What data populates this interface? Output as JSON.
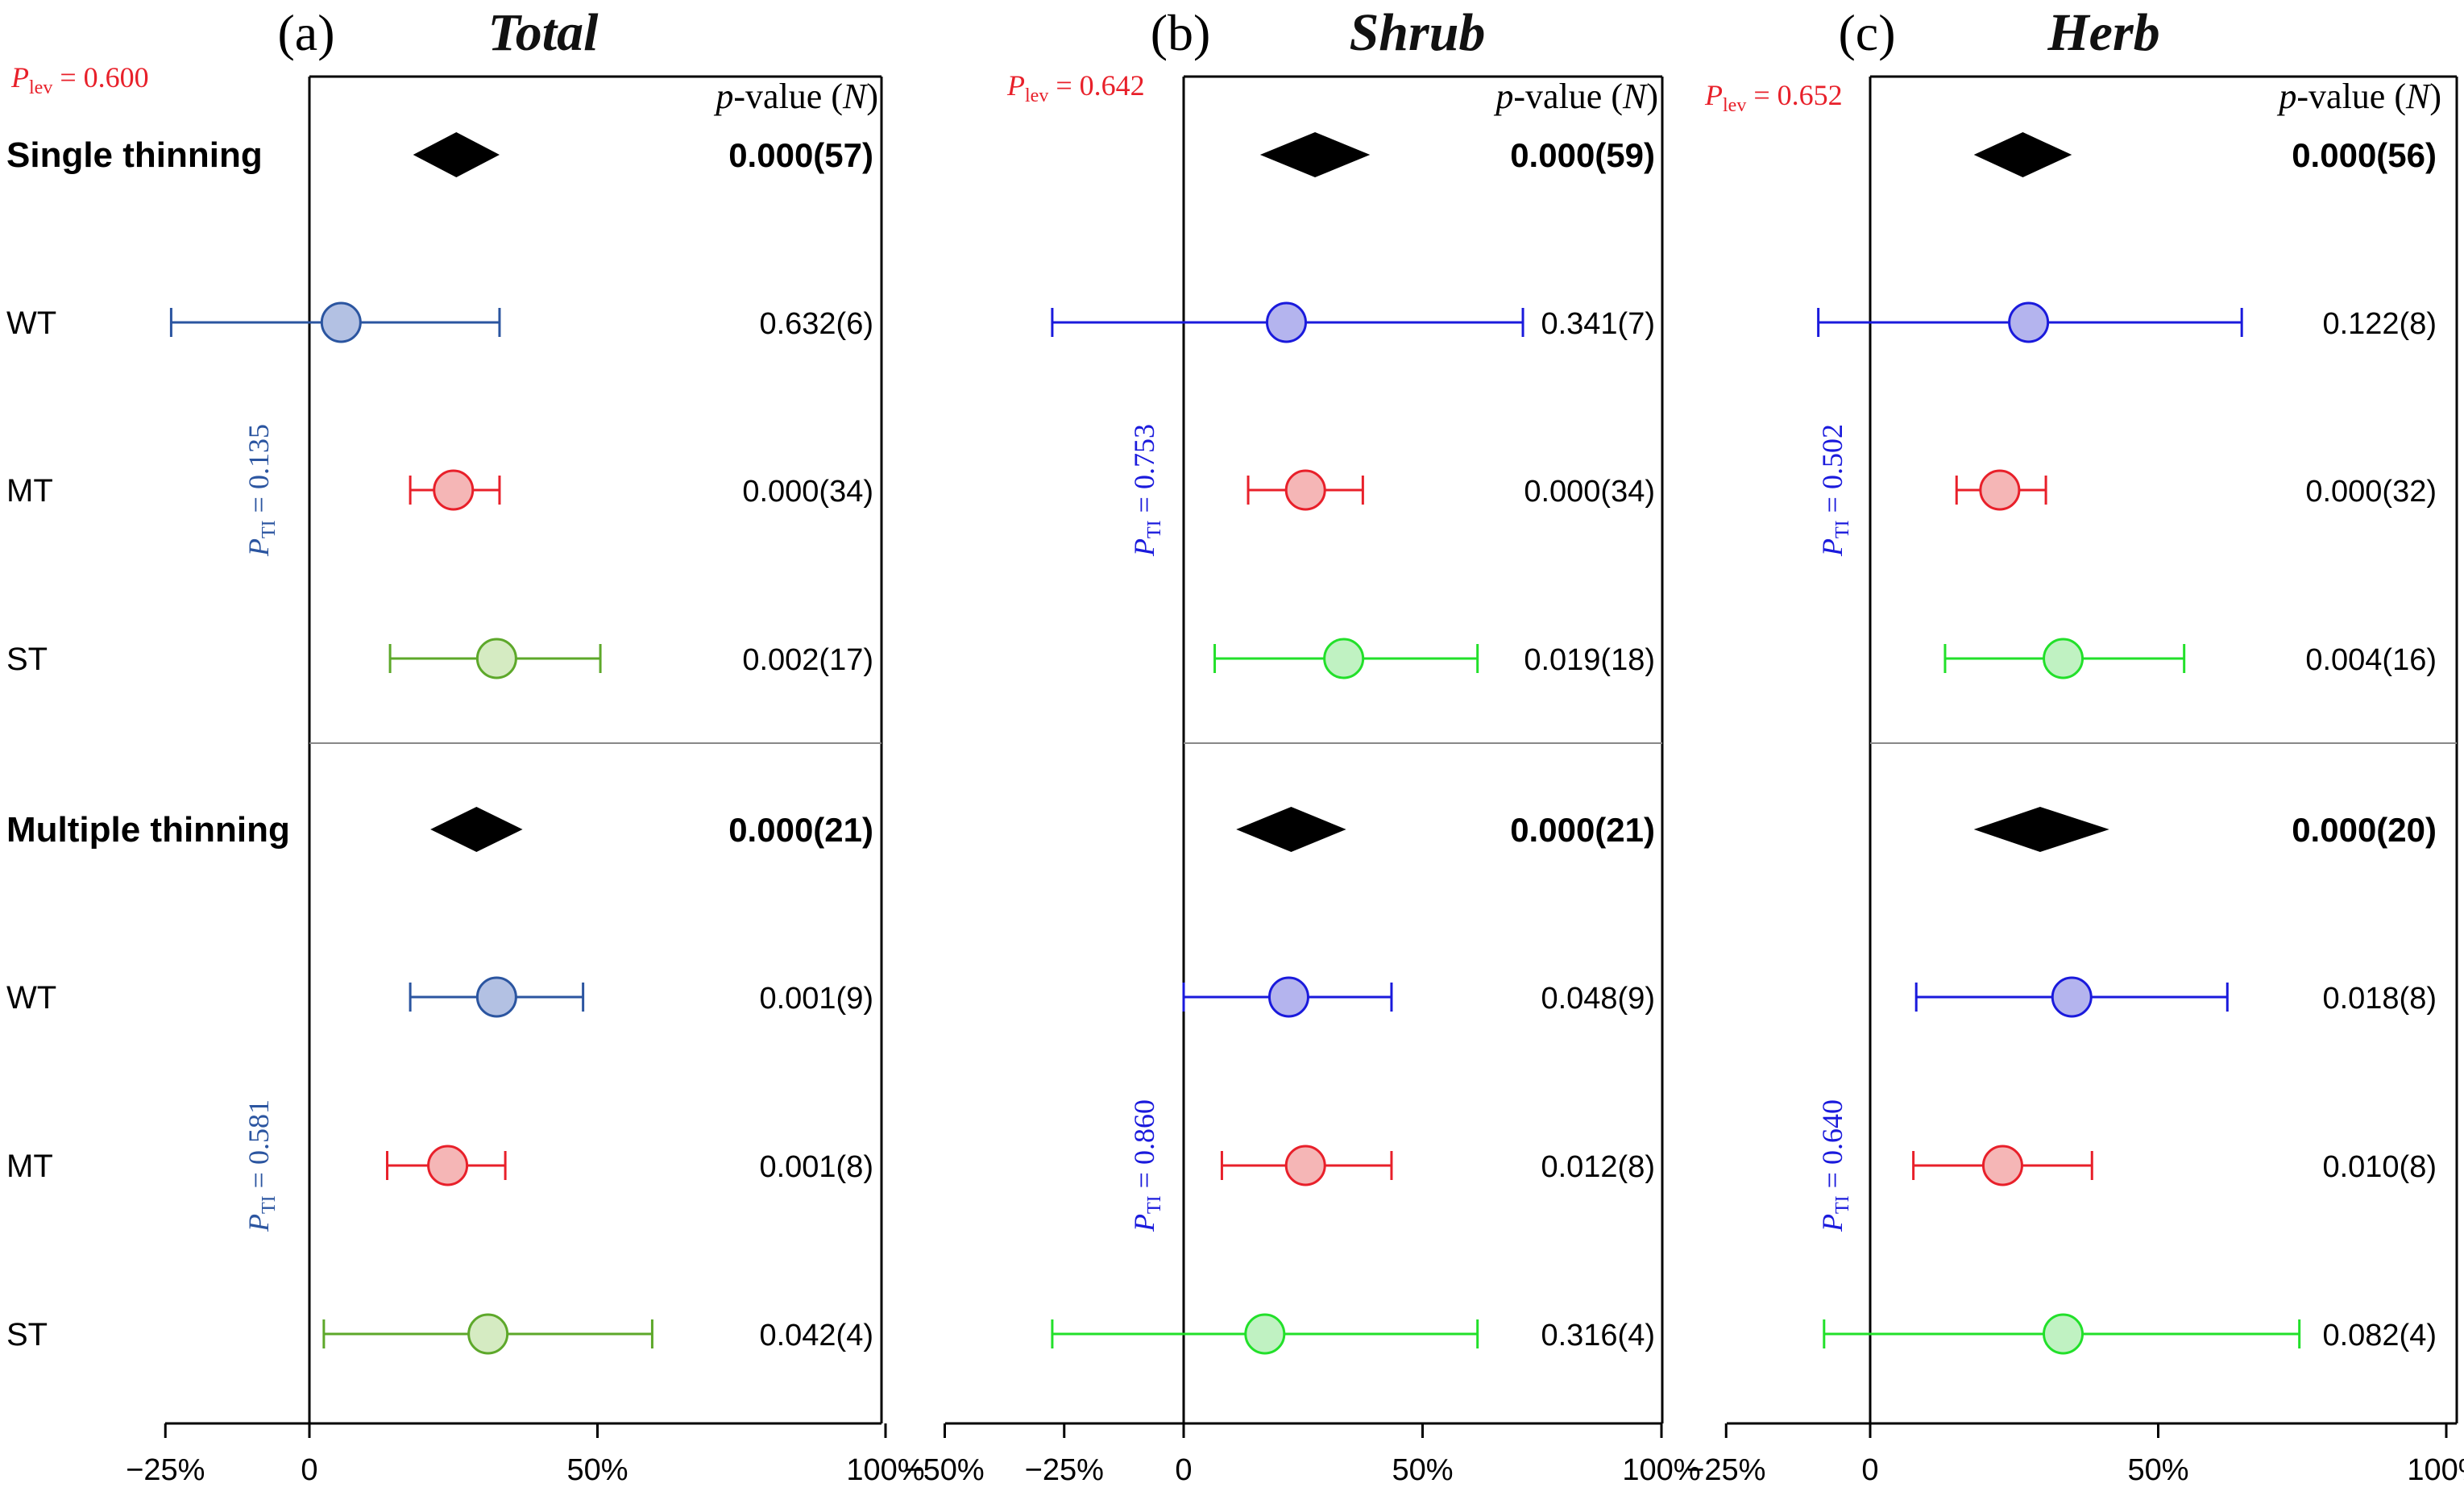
{
  "chart_data": [
    {
      "type": "forest",
      "panel_label": "(a)",
      "title": "Total",
      "p_lev": "0.600",
      "xlim": [
        -25,
        100
      ],
      "xticks": [
        -25,
        0,
        50,
        100
      ],
      "xtick_labels": [
        "−25%",
        "0",
        "50%",
        "100%"
      ],
      "column_header": [
        "p",
        "-value (",
        "N",
        ")"
      ],
      "groups": [
        {
          "name": "Single thinning",
          "pooled": {
            "mean": 25.5,
            "lower": 18,
            "upper": 33,
            "p_n": "0.000(57)"
          },
          "p_ti": "0.135",
          "rows": [
            {
              "label": "WT",
              "mean": 5.5,
              "lower": -24,
              "upper": 33,
              "p_n": "0.632(6)",
              "color": "#2b55a0",
              "fill": "#b3c1e3"
            },
            {
              "label": "MT",
              "mean": 25,
              "lower": 17.5,
              "upper": 33,
              "p_n": "0.000(34)",
              "color": "#e8202a",
              "fill": "#f5b6b6"
            },
            {
              "label": "ST",
              "mean": 32.5,
              "lower": 14,
              "upper": 50.5,
              "p_n": "0.002(17)",
              "color": "#5da82a",
              "fill": "#d5ebc2"
            }
          ]
        },
        {
          "name": "Multiple thinning",
          "pooled": {
            "mean": 29,
            "lower": 21,
            "upper": 37,
            "p_n": "0.000(21)"
          },
          "p_ti": "0.581",
          "rows": [
            {
              "label": "WT",
              "mean": 32.5,
              "lower": 17.5,
              "upper": 47.5,
              "p_n": "0.001(9)",
              "color": "#2b55a0",
              "fill": "#b3c1e3"
            },
            {
              "label": "MT",
              "mean": 24,
              "lower": 13.5,
              "upper": 34,
              "p_n": "0.001(8)",
              "color": "#e8202a",
              "fill": "#f5b6b6"
            },
            {
              "label": "ST",
              "mean": 31,
              "lower": 2.5,
              "upper": 59.5,
              "p_n": "0.042(4)",
              "color": "#5da82a",
              "fill": "#d5ebc2"
            }
          ]
        }
      ]
    },
    {
      "type": "forest",
      "panel_label": "(b)",
      "title": "Shrub",
      "p_lev": "0.642",
      "xlim": [
        -50,
        100
      ],
      "xticks": [
        -50,
        -25,
        0,
        50,
        100
      ],
      "xtick_labels": [
        "−50%",
        "−25%",
        "0",
        "50%",
        "100%"
      ],
      "column_header": [
        "p",
        "-value (",
        "N",
        ")"
      ],
      "groups": [
        {
          "name": "Single thinning",
          "pooled": {
            "mean": 27.5,
            "lower": 16,
            "upper": 39,
            "p_n": "0.000(59)"
          },
          "p_ti": "0.753",
          "rows": [
            {
              "label": "WT",
              "mean": 21.5,
              "lower": -27.5,
              "upper": 71,
              "p_n": "0.341(7)",
              "color": "#1a1adc",
              "fill": "#b4b4ee"
            },
            {
              "label": "MT",
              "mean": 25.5,
              "lower": 13.5,
              "upper": 37.5,
              "p_n": "0.000(34)",
              "color": "#e8202a",
              "fill": "#f5b6b6"
            },
            {
              "label": "ST",
              "mean": 33.5,
              "lower": 6.5,
              "upper": 61.5,
              "p_n": "0.019(18)",
              "color": "#22e02a",
              "fill": "#c0f2c2"
            }
          ]
        },
        {
          "name": "Multiple thinning",
          "pooled": {
            "mean": 22.5,
            "lower": 11,
            "upper": 34,
            "p_n": "0.000(21)"
          },
          "p_ti": "0.860",
          "rows": [
            {
              "label": "WT",
              "mean": 22,
              "lower": 0,
              "upper": 43.5,
              "p_n": "0.048(9)",
              "color": "#1a1adc",
              "fill": "#b4b4ee"
            },
            {
              "label": "MT",
              "mean": 25.5,
              "lower": 8,
              "upper": 43.5,
              "p_n": "0.012(8)",
              "color": "#e8202a",
              "fill": "#f5b6b6"
            },
            {
              "label": "ST",
              "mean": 17,
              "lower": -27.5,
              "upper": 61.5,
              "p_n": "0.316(4)",
              "color": "#22e02a",
              "fill": "#c0f2c2"
            }
          ]
        }
      ]
    },
    {
      "type": "forest",
      "panel_label": "(c)",
      "title": "Herb",
      "p_lev": "0.652",
      "xlim": [
        -25,
        100
      ],
      "xticks": [
        -25,
        0,
        50,
        100
      ],
      "xtick_labels": [
        "−25%",
        "0",
        "50%",
        "100%"
      ],
      "column_header": [
        "p",
        "-value (",
        "N",
        ")"
      ],
      "groups": [
        {
          "name": "Single thinning",
          "pooled": {
            "mean": 26.5,
            "lower": 18,
            "upper": 35,
            "p_n": "0.000(56)"
          },
          "p_ti": "0.502",
          "rows": [
            {
              "label": "WT",
              "mean": 27.5,
              "lower": -9,
              "upper": 64.5,
              "p_n": "0.122(8)",
              "color": "#1a1adc",
              "fill": "#b4b4ee"
            },
            {
              "label": "MT",
              "mean": 22.5,
              "lower": 15,
              "upper": 30.5,
              "p_n": "0.000(32)",
              "color": "#e8202a",
              "fill": "#f5b6b6"
            },
            {
              "label": "ST",
              "mean": 33.5,
              "lower": 13,
              "upper": 54.5,
              "p_n": "0.004(16)",
              "color": "#22e02a",
              "fill": "#c0f2c2"
            }
          ]
        },
        {
          "name": "Multiple thinning",
          "pooled": {
            "mean": 29.5,
            "lower": 18,
            "upper": 41.5,
            "p_n": "0.000(20)"
          },
          "p_ti": "0.640",
          "rows": [
            {
              "label": "WT",
              "mean": 35,
              "lower": 8,
              "upper": 62,
              "p_n": "0.018(8)",
              "color": "#1a1adc",
              "fill": "#b4b4ee"
            },
            {
              "label": "MT",
              "mean": 23,
              "lower": 7.5,
              "upper": 38.5,
              "p_n": "0.010(8)",
              "color": "#e8202a",
              "fill": "#f5b6b6"
            },
            {
              "label": "ST",
              "mean": 33.5,
              "lower": -8,
              "upper": 74.5,
              "p_n": "0.082(4)",
              "color": "#22e02a",
              "fill": "#c0f2c2"
            }
          ]
        }
      ]
    }
  ],
  "colors": {
    "axis": "#000000",
    "divider": "#888888",
    "p_lev_text": "#e8202a",
    "p_ti_text": "#1a1adc",
    "p_ti_text_panel_a": "#2b55a0",
    "pooled_marker": "#000000"
  }
}
